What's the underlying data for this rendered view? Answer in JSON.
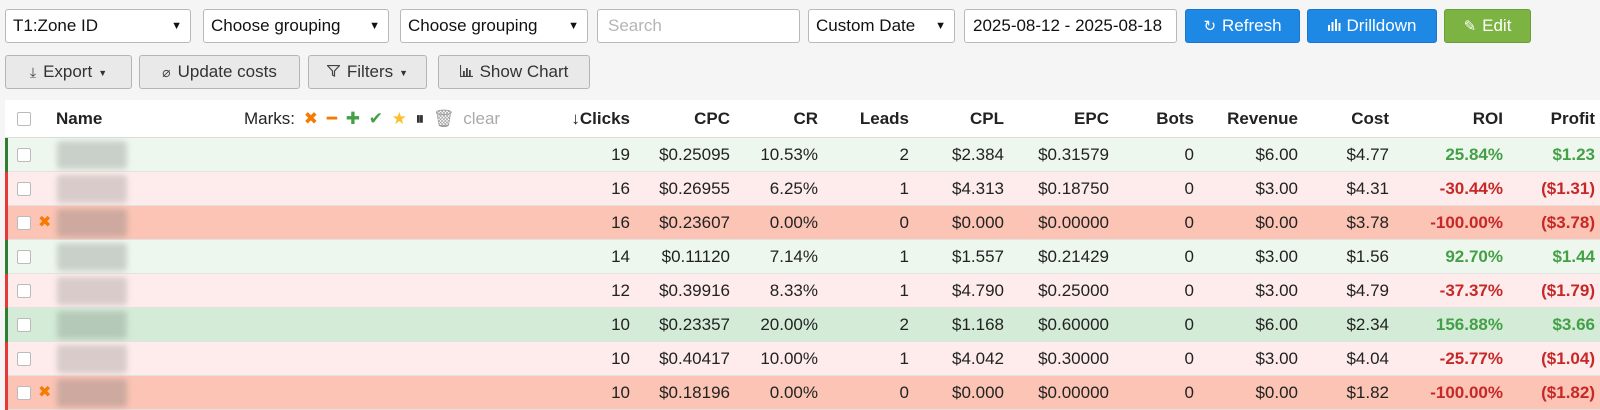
{
  "toolbar": {
    "group1": "T1:Zone ID",
    "group2": "Choose grouping",
    "group3": "Choose grouping",
    "search_placeholder": "Search",
    "date_mode": "Custom Date",
    "date_range": "2025-08-12 - 2025-08-18",
    "refresh_label": "Refresh",
    "drilldown_label": "Drilldown",
    "edit_label": "Edit",
    "colors": {
      "blue": "#1e88e5",
      "green": "#7cb342"
    }
  },
  "actions": {
    "export_label": "Export",
    "update_costs_label": "Update costs",
    "filters_label": "Filters",
    "show_chart_label": "Show Chart"
  },
  "table": {
    "headers": {
      "name": "Name",
      "marks_label": "Marks:",
      "marks_clear": "clear",
      "clicks": "Clicks",
      "cpc": "CPC",
      "cr": "CR",
      "leads": "Leads",
      "cpl": "CPL",
      "epc": "EPC",
      "bots": "Bots",
      "revenue": "Revenue",
      "cost": "Cost",
      "roi": "ROI",
      "profit": "Profit"
    },
    "rows": [
      {
        "status": "positive",
        "marked": false,
        "clicks": "19",
        "cpc": "$0.25095",
        "cr": "10.53%",
        "leads": "2",
        "cpl": "$2.384",
        "epc": "$0.31579",
        "bots": "0",
        "revenue": "$6.00",
        "cost": "$4.77",
        "roi": "25.84%",
        "profit": "$1.23"
      },
      {
        "status": "negative",
        "marked": false,
        "clicks": "16",
        "cpc": "$0.26955",
        "cr": "6.25%",
        "leads": "1",
        "cpl": "$4.313",
        "epc": "$0.18750",
        "bots": "0",
        "revenue": "$3.00",
        "cost": "$4.31",
        "roi": "-30.44%",
        "profit": "($1.31)"
      },
      {
        "status": "loss",
        "marked": true,
        "clicks": "16",
        "cpc": "$0.23607",
        "cr": "0.00%",
        "leads": "0",
        "cpl": "$0.000",
        "epc": "$0.00000",
        "bots": "0",
        "revenue": "$0.00",
        "cost": "$3.78",
        "roi": "-100.00%",
        "profit": "($3.78)"
      },
      {
        "status": "positive",
        "marked": false,
        "clicks": "14",
        "cpc": "$0.11120",
        "cr": "7.14%",
        "leads": "1",
        "cpl": "$1.557",
        "epc": "$0.21429",
        "bots": "0",
        "revenue": "$3.00",
        "cost": "$1.56",
        "roi": "92.70%",
        "profit": "$1.44"
      },
      {
        "status": "negative",
        "marked": false,
        "clicks": "12",
        "cpc": "$0.39916",
        "cr": "8.33%",
        "leads": "1",
        "cpl": "$4.790",
        "epc": "$0.25000",
        "bots": "0",
        "revenue": "$3.00",
        "cost": "$4.79",
        "roi": "-37.37%",
        "profit": "($1.79)"
      },
      {
        "status": "strong",
        "marked": false,
        "clicks": "10",
        "cpc": "$0.23357",
        "cr": "20.00%",
        "leads": "2",
        "cpl": "$1.168",
        "epc": "$0.60000",
        "bots": "0",
        "revenue": "$6.00",
        "cost": "$2.34",
        "roi": "156.88%",
        "profit": "$3.66"
      },
      {
        "status": "negative",
        "marked": false,
        "clicks": "10",
        "cpc": "$0.40417",
        "cr": "10.00%",
        "leads": "1",
        "cpl": "$4.042",
        "epc": "$0.30000",
        "bots": "0",
        "revenue": "$3.00",
        "cost": "$4.04",
        "roi": "-25.77%",
        "profit": "($1.04)"
      },
      {
        "status": "loss",
        "marked": true,
        "clicks": "10",
        "cpc": "$0.18196",
        "cr": "0.00%",
        "leads": "0",
        "cpl": "$0.000",
        "epc": "$0.00000",
        "bots": "0",
        "revenue": "$0.00",
        "cost": "$1.82",
        "roi": "-100.00%",
        "profit": "($1.82)"
      }
    ],
    "status_colors": {
      "positive": {
        "bg": "#eef7ee",
        "bar": "#2e7d32",
        "blur": "#c9cfc9"
      },
      "negative": {
        "bg": "#fdeceb",
        "bar": "#e53935",
        "blur": "#d8cbca"
      },
      "loss": {
        "bg": "#fbc4b4",
        "bar": "#e53935",
        "blur": "#cda99f"
      },
      "strong": {
        "bg": "#d4ecd7",
        "bar": "#2e7d32",
        "blur": "#b5c9b8"
      }
    }
  }
}
